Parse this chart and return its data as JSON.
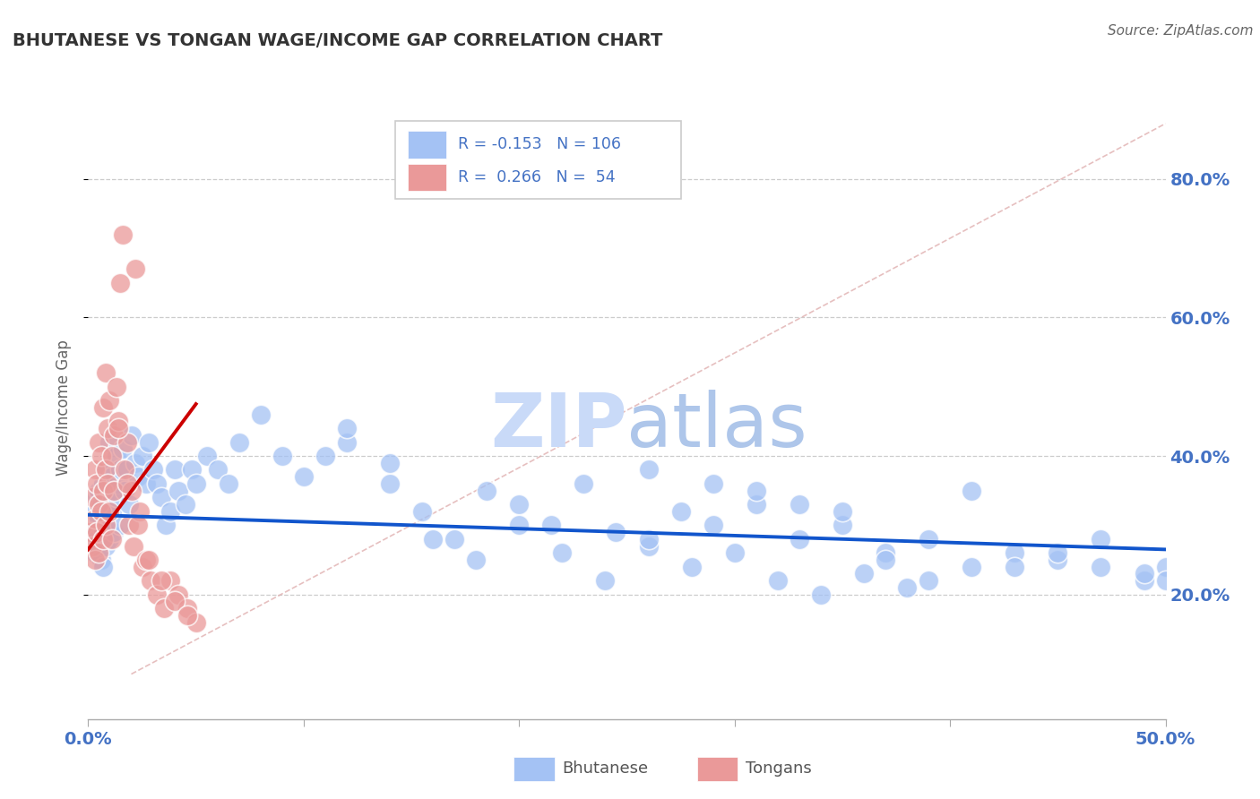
{
  "title": "BHUTANESE VS TONGAN WAGE/INCOME GAP CORRELATION CHART",
  "source": "Source: ZipAtlas.com",
  "ylabel": "Wage/Income Gap",
  "xlim": [
    0.0,
    0.5
  ],
  "ylim": [
    0.02,
    0.92
  ],
  "blue_R": "-0.153",
  "blue_N": "106",
  "pink_R": "0.266",
  "pink_N": "54",
  "blue_color": "#a4c2f4",
  "pink_color": "#ea9999",
  "blue_line_color": "#1155cc",
  "pink_line_color": "#cc0000",
  "axis_label_color": "#4472c4",
  "grid_color": "#cccccc",
  "title_color": "#333333",
  "watermark_color": "#c9daf8",
  "bhutanese_x": [
    0.002,
    0.003,
    0.003,
    0.004,
    0.004,
    0.005,
    0.005,
    0.005,
    0.006,
    0.006,
    0.007,
    0.007,
    0.007,
    0.008,
    0.008,
    0.009,
    0.009,
    0.01,
    0.01,
    0.011,
    0.011,
    0.012,
    0.012,
    0.013,
    0.013,
    0.014,
    0.015,
    0.015,
    0.016,
    0.017,
    0.018,
    0.019,
    0.02,
    0.022,
    0.023,
    0.025,
    0.027,
    0.028,
    0.03,
    0.032,
    0.034,
    0.036,
    0.038,
    0.04,
    0.042,
    0.045,
    0.048,
    0.05,
    0.055,
    0.06,
    0.065,
    0.07,
    0.08,
    0.09,
    0.1,
    0.11,
    0.12,
    0.14,
    0.155,
    0.17,
    0.185,
    0.2,
    0.215,
    0.23,
    0.245,
    0.26,
    0.275,
    0.29,
    0.31,
    0.33,
    0.35,
    0.37,
    0.39,
    0.41,
    0.43,
    0.45,
    0.47,
    0.49,
    0.5,
    0.26,
    0.29,
    0.31,
    0.33,
    0.35,
    0.37,
    0.39,
    0.41,
    0.43,
    0.45,
    0.47,
    0.49,
    0.5,
    0.12,
    0.14,
    0.16,
    0.18,
    0.2,
    0.22,
    0.24,
    0.26,
    0.28,
    0.3,
    0.32,
    0.34,
    0.36,
    0.38
  ],
  "bhutanese_y": [
    0.29,
    0.32,
    0.26,
    0.34,
    0.28,
    0.31,
    0.27,
    0.35,
    0.33,
    0.25,
    0.36,
    0.29,
    0.24,
    0.38,
    0.27,
    0.33,
    0.3,
    0.42,
    0.28,
    0.37,
    0.32,
    0.35,
    0.29,
    0.4,
    0.34,
    0.36,
    0.38,
    0.3,
    0.41,
    0.35,
    0.38,
    0.33,
    0.43,
    0.39,
    0.37,
    0.4,
    0.36,
    0.42,
    0.38,
    0.36,
    0.34,
    0.3,
    0.32,
    0.38,
    0.35,
    0.33,
    0.38,
    0.36,
    0.4,
    0.38,
    0.36,
    0.42,
    0.46,
    0.4,
    0.37,
    0.4,
    0.42,
    0.36,
    0.32,
    0.28,
    0.35,
    0.33,
    0.3,
    0.36,
    0.29,
    0.27,
    0.32,
    0.3,
    0.33,
    0.28,
    0.3,
    0.26,
    0.28,
    0.24,
    0.26,
    0.25,
    0.24,
    0.22,
    0.24,
    0.38,
    0.36,
    0.35,
    0.33,
    0.32,
    0.25,
    0.22,
    0.35,
    0.24,
    0.26,
    0.28,
    0.23,
    0.22,
    0.44,
    0.39,
    0.28,
    0.25,
    0.3,
    0.26,
    0.22,
    0.28,
    0.24,
    0.26,
    0.22,
    0.2,
    0.23,
    0.21
  ],
  "tongan_x": [
    0.001,
    0.002,
    0.002,
    0.003,
    0.003,
    0.003,
    0.004,
    0.004,
    0.005,
    0.005,
    0.005,
    0.006,
    0.006,
    0.007,
    0.007,
    0.007,
    0.008,
    0.008,
    0.008,
    0.009,
    0.009,
    0.01,
    0.01,
    0.011,
    0.011,
    0.012,
    0.012,
    0.013,
    0.014,
    0.015,
    0.016,
    0.017,
    0.018,
    0.019,
    0.02,
    0.021,
    0.022,
    0.024,
    0.025,
    0.027,
    0.029,
    0.032,
    0.035,
    0.038,
    0.042,
    0.046,
    0.05,
    0.014,
    0.018,
    0.023,
    0.028,
    0.034,
    0.04,
    0.046
  ],
  "tongan_y": [
    0.29,
    0.34,
    0.27,
    0.38,
    0.31,
    0.25,
    0.36,
    0.29,
    0.42,
    0.33,
    0.26,
    0.4,
    0.32,
    0.47,
    0.35,
    0.28,
    0.52,
    0.38,
    0.3,
    0.44,
    0.36,
    0.48,
    0.32,
    0.4,
    0.28,
    0.35,
    0.43,
    0.5,
    0.45,
    0.65,
    0.72,
    0.38,
    0.42,
    0.3,
    0.35,
    0.27,
    0.67,
    0.32,
    0.24,
    0.25,
    0.22,
    0.2,
    0.18,
    0.22,
    0.2,
    0.18,
    0.16,
    0.44,
    0.36,
    0.3,
    0.25,
    0.22,
    0.19,
    0.17
  ],
  "blue_trendline_x": [
    0.0,
    0.5
  ],
  "blue_trendline_y": [
    0.315,
    0.265
  ],
  "pink_trendline_x": [
    0.0,
    0.05
  ],
  "pink_trendline_y": [
    0.265,
    0.475
  ],
  "diagonal_line_x": [
    0.02,
    0.5
  ],
  "diagonal_line_y": [
    0.085,
    0.88
  ],
  "legend_bhutanese": "Bhutanese",
  "legend_tongans": "Tongans"
}
